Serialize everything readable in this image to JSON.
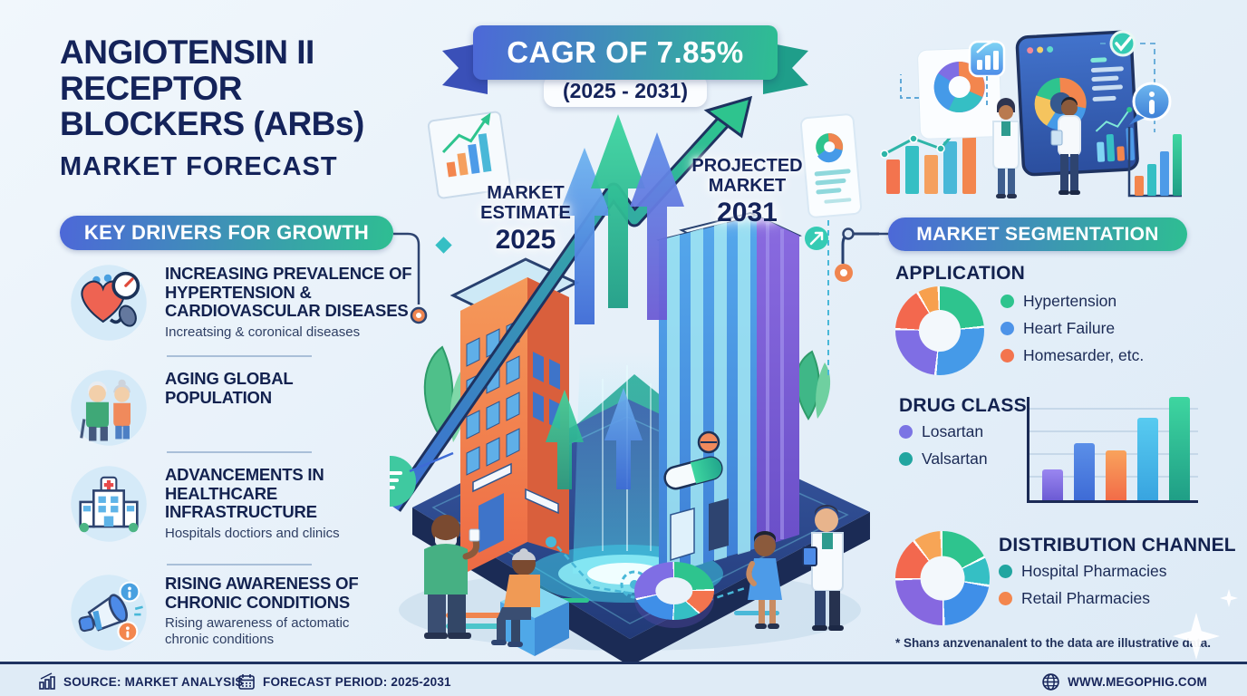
{
  "title": {
    "text": "ANGIOTENSIN II RECEPTOR BLOCKERS (ARBs)",
    "subtitle": "MARKET FORECAST"
  },
  "ribbon": {
    "headline": "CAGR OF 7.85%",
    "period": "(2025 - 2031)"
  },
  "key_drivers": {
    "header": "KEY DRIVERS FOR GROWTH",
    "items": [
      {
        "icon": "heart-blood-pressure-icon",
        "title": "INCREASING PREVALENCE OF HYPERTENSION & CARDIOVASCULAR DISEASES",
        "subtitle": "Increatsing & coronical diseases"
      },
      {
        "icon": "elderly-couple-icon",
        "title": "AGING GLOBAL POPULATION",
        "subtitle": ""
      },
      {
        "icon": "hospital-icon",
        "title": "ADVANCEMENTS IN HEALTHCARE INFRASTRUCTURE",
        "subtitle": "Hospitals doctiors and clinics"
      },
      {
        "icon": "megaphone-icon",
        "title": "RISING AWARENESS OF CHRONIC CONDITIONS",
        "subtitle": "Rising awareness of actomatic chronic conditions"
      }
    ]
  },
  "center": {
    "estimate_label": "MARKET ESTIMATE",
    "estimate_year": "2025",
    "projected_label": "PROJECTED MARKET",
    "projected_year": "2031"
  },
  "segmentation": {
    "header": "MARKET SEGMENTATION",
    "application": {
      "title": "APPLICATION",
      "legend": [
        {
          "label": "Hypertension",
          "color": "#2EC48E"
        },
        {
          "label": "Heart Failure",
          "color": "#4D93E8"
        },
        {
          "label": "Homesarder, etc.",
          "color": "#F3744E"
        }
      ]
    },
    "drug_class": {
      "title": "DRUG CLASS",
      "legend": [
        {
          "label": "Losartan",
          "color": "#7B74E4"
        },
        {
          "label": "Valsartan",
          "color": "#21A5A0"
        }
      ]
    },
    "distribution": {
      "title": "DISTRIBUTION CHANNEL",
      "legend": [
        {
          "label": "Hospital Pharmacies",
          "color": "#21A5A0"
        },
        {
          "label": "Retail Pharmacies",
          "color": "#F3864E"
        }
      ]
    },
    "footnote": "* Shanз anzvenanalent to the data are illustrative data."
  },
  "footer": {
    "source": "SOURCE: MARKET ANALYSIS",
    "forecast": "FORECAST PERIOD: 2025-2031",
    "website": "WWW.MEGOPHIG.COM"
  },
  "chart_data": [
    {
      "id": "application-donut",
      "type": "pie",
      "title": "APPLICATION",
      "note": "segment sizes estimated from artwork; figure is illustrative",
      "segments": [
        {
          "label": "Hypertension",
          "value": 24,
          "color": "#2EC48E"
        },
        {
          "label": "Heart Failure",
          "value": 28,
          "color": "#459AE8"
        },
        {
          "label": "",
          "value": 24,
          "color": "#7F6EE4"
        },
        {
          "label": "Homesarder, etc.",
          "value": 16,
          "color": "#F3684E"
        },
        {
          "label": "",
          "value": 8,
          "color": "#F7A04E"
        }
      ]
    },
    {
      "id": "drug-class-bars",
      "type": "bar",
      "title": "DRUG CLASS",
      "note": "bar heights estimated from artwork; no axis labels shown",
      "categories": [
        "",
        "",
        "",
        "",
        ""
      ],
      "values": [
        30,
        55,
        48,
        80,
        100
      ],
      "ylim": [
        0,
        100
      ],
      "grid": true,
      "colors": [
        [
          "#9A86F0",
          "#6C5BD4"
        ],
        [
          "#5B8FE8",
          "#3E6BD6"
        ],
        [
          "#F9A35C",
          "#F26C48"
        ],
        [
          "#58CBF0",
          "#38A4E0"
        ],
        [
          "#3ED6A0",
          "#1F9E86"
        ]
      ]
    },
    {
      "id": "distribution-donut",
      "type": "pie",
      "title": "DISTRIBUTION CHANNEL",
      "note": "segment sizes estimated from artwork; figure is illustrative",
      "segments": [
        {
          "label": "Hospital Pharmacies",
          "value": 18,
          "color": "#2EC48E"
        },
        {
          "label": "",
          "value": 10,
          "color": "#35BFC4"
        },
        {
          "label": "",
          "value": 22,
          "color": "#3F8FE8"
        },
        {
          "label": "",
          "value": 25,
          "color": "#8668E0"
        },
        {
          "label": "Retail Pharmacies",
          "value": 15,
          "color": "#F3684E"
        },
        {
          "label": "",
          "value": 10,
          "color": "#F7A556"
        }
      ]
    },
    {
      "id": "center-decorative-donut",
      "type": "pie",
      "title": "",
      "note": "decorative 3D donut inside the illustration",
      "segments": [
        {
          "label": "",
          "value": 25,
          "color": "#2EC48E"
        },
        {
          "label": "",
          "value": 12,
          "color": "#F3744E"
        },
        {
          "label": "",
          "value": 14,
          "color": "#35BFC4"
        },
        {
          "label": "",
          "value": 21,
          "color": "#3F8FE8"
        },
        {
          "label": "",
          "value": 28,
          "color": "#7F6EE4"
        }
      ]
    }
  ]
}
